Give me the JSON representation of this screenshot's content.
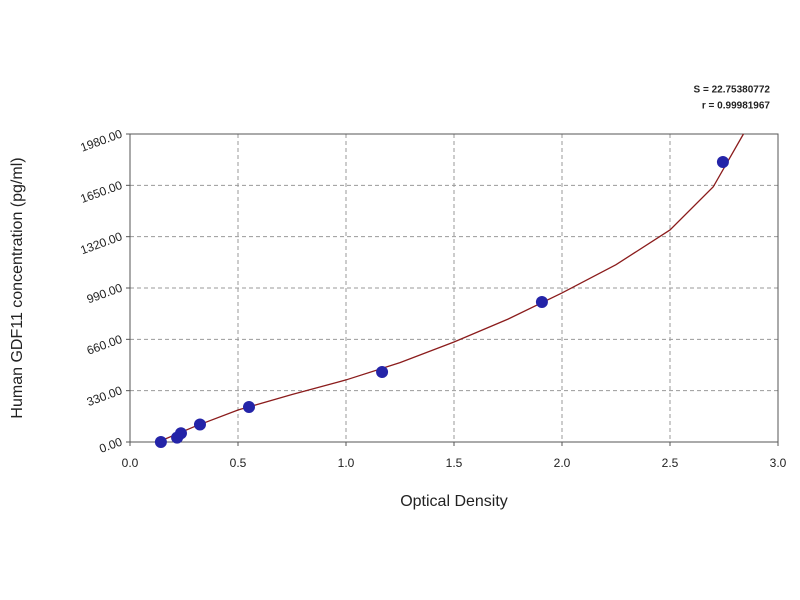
{
  "chart_data": {
    "type": "scatter",
    "annotations": [
      "S = 22.75380772",
      "r = 0.99981967"
    ],
    "x_label": "Optical Density",
    "y_label": "Human GDF11 concentration (pg/ml)",
    "x": [
      0.143,
      0.218,
      0.236,
      0.324,
      0.551,
      1.167,
      1.907,
      2.745
    ],
    "y": [
      0,
      28.125,
      56.25,
      112.5,
      225,
      450,
      900,
      1800
    ],
    "color": "#2424a8",
    "curve": {
      "color": "#8b1c1c",
      "x": [
        0.13,
        0.3,
        0.5,
        0.75,
        1.0,
        1.25,
        1.5,
        1.75,
        2.0,
        2.25,
        2.5,
        2.7,
        2.84
      ],
      "y": [
        0,
        100,
        206,
        305,
        399,
        510,
        643,
        790,
        958,
        1140,
        1363,
        1640,
        1980
      ]
    },
    "xlim": [
      0,
      3
    ],
    "ylim": [
      0,
      1980
    ],
    "xticks": [
      {
        "value": 0,
        "label": "0.0"
      },
      0.5,
      {
        "value": 1,
        "label": "1.0"
      },
      1.5,
      {
        "value": 2,
        "label": "2.0"
      },
      2.5,
      {
        "value": 3,
        "label": "3.0"
      }
    ],
    "yticks": [
      {
        "value": 0,
        "label": "0.00"
      },
      {
        "value": 330,
        "label": "330.00"
      },
      {
        "value": 660,
        "label": "660.00"
      },
      {
        "value": 990,
        "label": "990.00"
      },
      {
        "value": 1320,
        "label": "1320.00"
      },
      {
        "value": 1650,
        "label": "1650.00"
      },
      {
        "value": 1980,
        "label": "1980.00"
      }
    ],
    "grid": true
  }
}
